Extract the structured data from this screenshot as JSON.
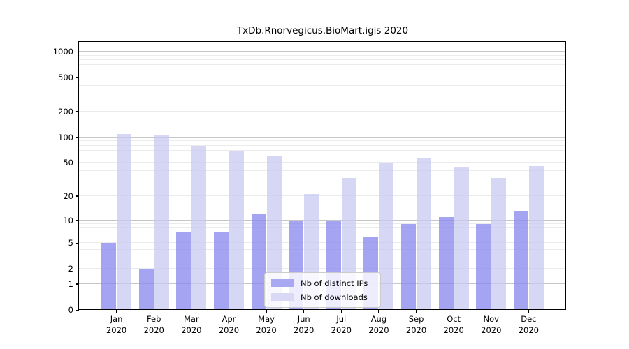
{
  "chart_data": {
    "type": "bar",
    "title": "TxDb.Rnorvegicus.BioMart.igis 2020",
    "categories": [
      "Jan",
      "Feb",
      "Mar",
      "Apr",
      "May",
      "Jun",
      "Jul",
      "Aug",
      "Sep",
      "Oct",
      "Nov",
      "Dec"
    ],
    "x_year_label": "2020",
    "series": [
      {
        "name": "Nb of distinct IPs",
        "color": "rgba(138,138,240,0.78)",
        "legend_color": "#a9a9f3",
        "values": [
          5,
          2,
          7,
          7,
          12,
          10,
          10,
          6,
          9,
          11,
          9,
          13
        ]
      },
      {
        "name": "Nb of downloads",
        "color": "rgba(198,198,241,0.72)",
        "legend_color": "#d9d9f5",
        "values": [
          110,
          106,
          80,
          70,
          60,
          21,
          33,
          50,
          58,
          45,
          33,
          46
        ]
      }
    ],
    "yscale": "log1p",
    "ylim": [
      0,
      1000
    ],
    "yticks": [
      0,
      1,
      2,
      5,
      10,
      20,
      50,
      100,
      200,
      500,
      1000
    ],
    "minor_grid_values": [
      2,
      3,
      4,
      5,
      6,
      7,
      8,
      9,
      20,
      30,
      40,
      50,
      60,
      70,
      80,
      90,
      200,
      300,
      400,
      500,
      600,
      700,
      800,
      900
    ],
    "major_grid_values": [
      1,
      10,
      100,
      1000
    ],
    "grid": true,
    "legend_position": "lower center"
  },
  "colors": {
    "background": "#ffffff",
    "spine": "#000000",
    "major_grid": "#c6c6c6",
    "minor_grid": "#ebebeb",
    "text": "#000000",
    "legend_border": "#cccccc"
  }
}
